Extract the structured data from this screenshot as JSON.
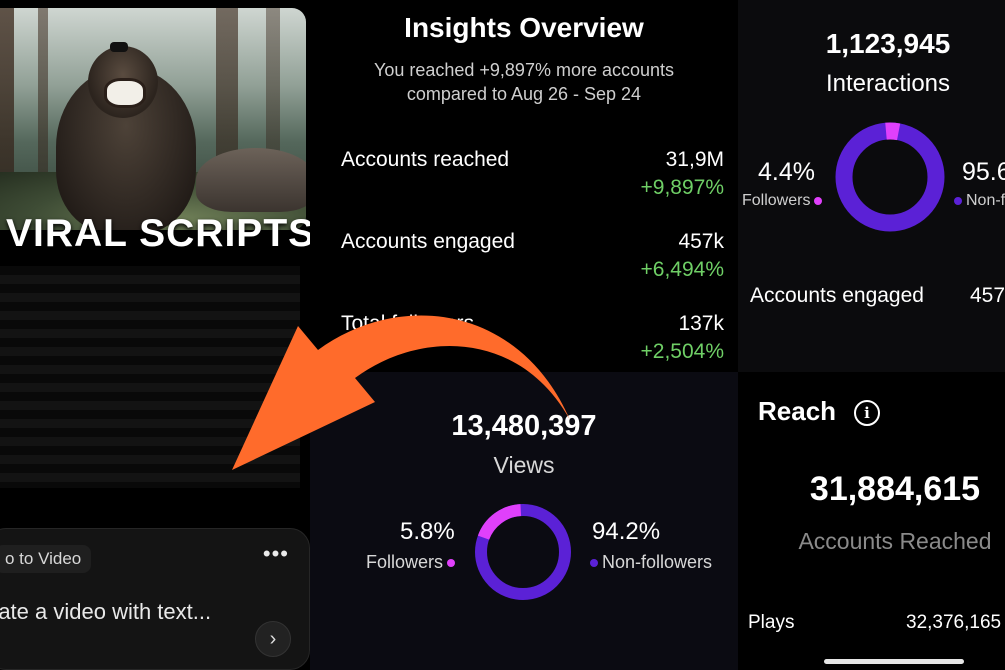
{
  "left": {
    "title": "VIRAL SCRIPTS",
    "chip": "o to Video",
    "prompt": "rate a video with text...",
    "more_icon": "ellipsis-icon",
    "send_icon": "chevron-right-icon"
  },
  "insights": {
    "title": "Insights Overview",
    "subtitle": "You reached +9,897% more accounts compared to Aug 26 - Sep 24",
    "rows": [
      {
        "label": "Accounts reached",
        "value": "31,9M",
        "delta": "+9,897%"
      },
      {
        "label": "Accounts engaged",
        "value": "457k",
        "delta": "+6,494%"
      },
      {
        "label": "Total followers",
        "value": "137k",
        "delta": "+2,504%"
      }
    ]
  },
  "interactions": {
    "number": "1,123,945",
    "label": "Interactions",
    "followers_pct": "4.4%",
    "followers_label": "Followers",
    "nonfollowers_pct": "95.6",
    "nonfollowers_label": "Non-f",
    "engaged_label": "Accounts engaged",
    "engaged_value": "457",
    "followers_fraction": 0.044
  },
  "views": {
    "number": "13,480,397",
    "label": "Views",
    "followers_pct": "5.8%",
    "followers_label": "Followers",
    "nonfollowers_pct": "94.2%",
    "nonfollowers_label": "Non-followers",
    "followers_fraction": 0.058
  },
  "reach": {
    "title": "Reach",
    "number": "31,884,615",
    "label": "Accounts Reached",
    "plays_label": "Plays",
    "plays_value": "32,376,165"
  },
  "colors": {
    "followers": "#e040fb",
    "nonfollowers": "#5b21d6",
    "delta": "#6fcf66",
    "arrow": "#ff6b2b"
  }
}
